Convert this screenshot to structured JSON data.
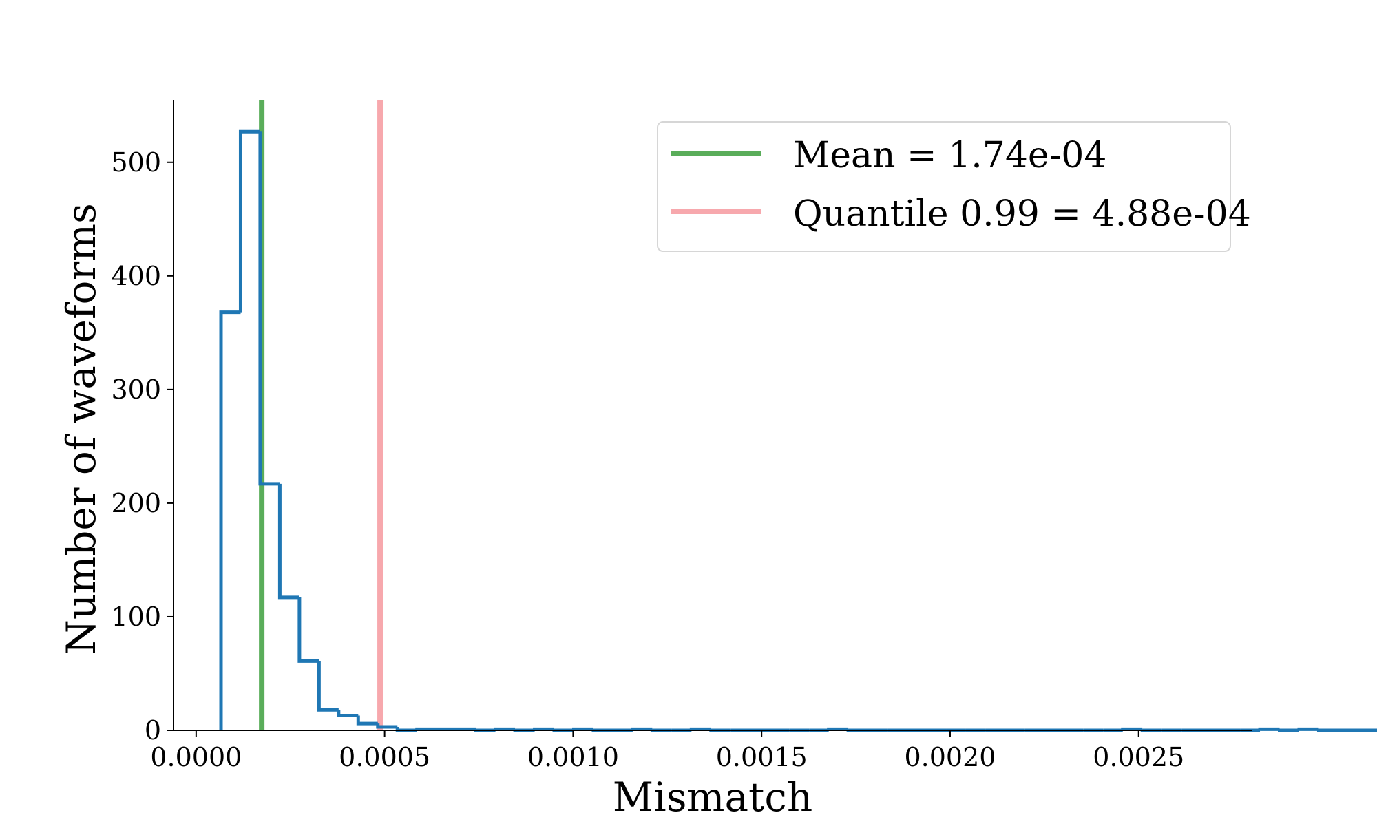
{
  "chart_data": {
    "type": "histogram",
    "xlabel": "Mismatch",
    "ylabel": "Number of waveforms",
    "xlim": [
      -6e-05,
      0.0028
    ],
    "ylim": [
      0,
      555
    ],
    "xticks": [
      0.0,
      0.0005,
      0.001,
      0.0015,
      0.002,
      0.0025
    ],
    "xtick_labels": [
      "0.0000",
      "0.0005",
      "0.0010",
      "0.0015",
      "0.0020",
      "0.0025"
    ],
    "yticks": [
      0,
      100,
      200,
      300,
      400,
      500
    ],
    "ytick_labels": [
      "0",
      "100",
      "200",
      "300",
      "400",
      "500"
    ],
    "grid": false,
    "legend_position": "top-right",
    "bin_width": 5.2e-05,
    "bin_start": 6.6e-05,
    "counts": [
      368,
      527,
      217,
      117,
      61,
      18,
      13,
      6,
      3,
      0,
      1,
      1,
      1,
      0,
      1,
      0,
      1,
      0,
      1,
      0,
      0,
      1,
      0,
      0,
      1,
      0,
      0,
      0,
      0,
      0,
      0,
      1,
      0,
      0,
      0,
      0,
      0,
      0,
      0,
      0,
      0,
      0,
      0,
      0,
      0,
      0,
      1,
      0,
      0,
      0,
      0,
      0,
      0,
      1,
      0,
      1,
      0,
      0,
      0,
      0,
      0,
      0,
      0,
      1,
      0,
      0,
      0,
      0,
      0,
      0,
      0,
      0,
      0,
      0,
      0,
      0,
      0,
      0,
      0,
      0,
      0,
      0,
      1,
      0,
      0,
      0,
      0,
      0,
      0,
      0,
      0,
      0,
      0,
      0,
      0,
      0,
      0,
      0,
      0,
      1,
      0,
      0,
      1,
      0,
      0,
      0,
      0,
      1,
      0
    ],
    "series_color": "#1f77b4",
    "reference_lines": [
      {
        "name": "Mean = 1.74e-04",
        "x": 0.000174,
        "color": "#5aad5a"
      },
      {
        "name": "Quantile 0.99 = 4.88e-04",
        "x": 0.000488,
        "color": "#f7a8ad"
      }
    ]
  }
}
